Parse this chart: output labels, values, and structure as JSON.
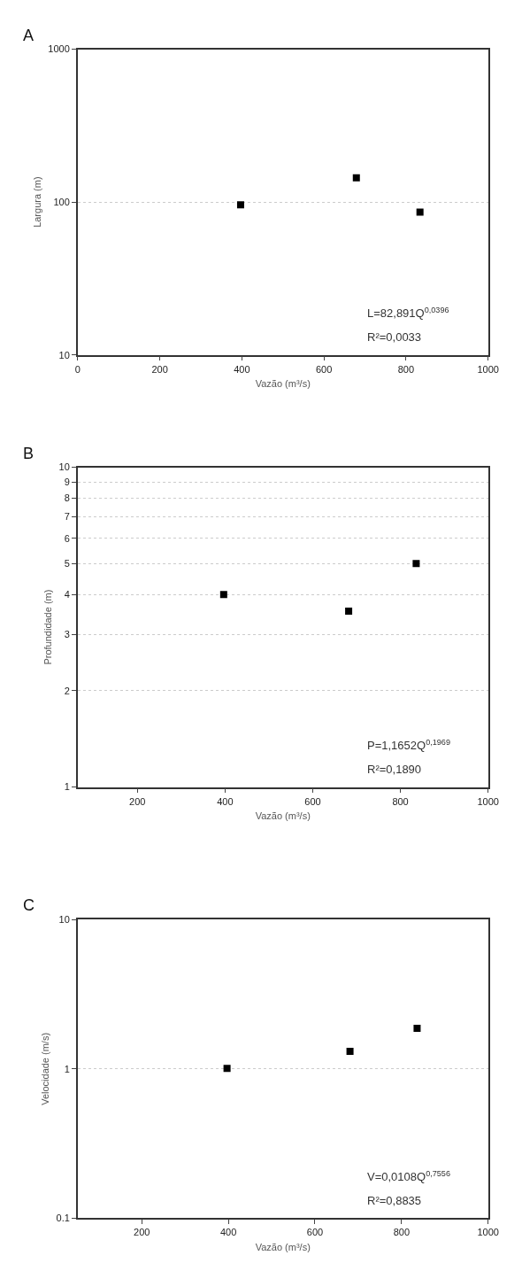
{
  "chart_data": [
    {
      "type": "scatter",
      "title": "A",
      "xlabel": "Vazão (m³/s)",
      "ylabel": "Largura (m)",
      "x": [
        397,
        679,
        834
      ],
      "values": [
        96,
        144,
        86
      ],
      "color": "#000000",
      "marker": "square",
      "log": "y",
      "xlim": [
        0,
        1000
      ],
      "xticks": [
        0,
        200,
        400,
        600,
        800,
        1000
      ],
      "ylim": [
        10,
        1000
      ],
      "yticks": [
        10,
        100,
        1000
      ],
      "grid": "y",
      "annotations": [
        "L=82,891Q$^{0,0396}$",
        "R²=0,0033"
      ]
    },
    {
      "type": "scatter",
      "title": "B",
      "xlabel": "Vazão (m³/s)",
      "ylabel": "Profundidade (m)",
      "x": [
        397,
        682,
        836
      ],
      "values": [
        4.0,
        3.55,
        5.0
      ],
      "color": "#000000",
      "marker": "square",
      "log": "y",
      "xlim": [
        64,
        1000
      ],
      "xticks": [
        200,
        400,
        600,
        800,
        1000
      ],
      "ylim": [
        1,
        10
      ],
      "yticks": [
        1,
        2,
        3,
        4,
        5,
        6,
        7,
        8,
        9,
        10
      ],
      "grid": "y",
      "annotations": [
        "P=1,1652Q$^{0,1969}$",
        "R²=0,1890"
      ]
    },
    {
      "type": "scatter",
      "title": "C",
      "xlabel": "Vazão (m³/s)",
      "ylabel": "Velocidade (m/s)",
      "x": [
        397,
        681,
        836
      ],
      "values": [
        1.01,
        1.31,
        1.87
      ],
      "color": "#000000",
      "marker": "square",
      "log": "y",
      "xlim": [
        52,
        1000
      ],
      "xticks": [
        200,
        400,
        600,
        800,
        1000
      ],
      "ylim": [
        0.1,
        10
      ],
      "yticks": [
        0.1,
        1,
        10
      ],
      "grid": "y",
      "annotations": [
        "V=0,0108Q$^{0,7556}$",
        "R²=0,8835"
      ]
    }
  ]
}
